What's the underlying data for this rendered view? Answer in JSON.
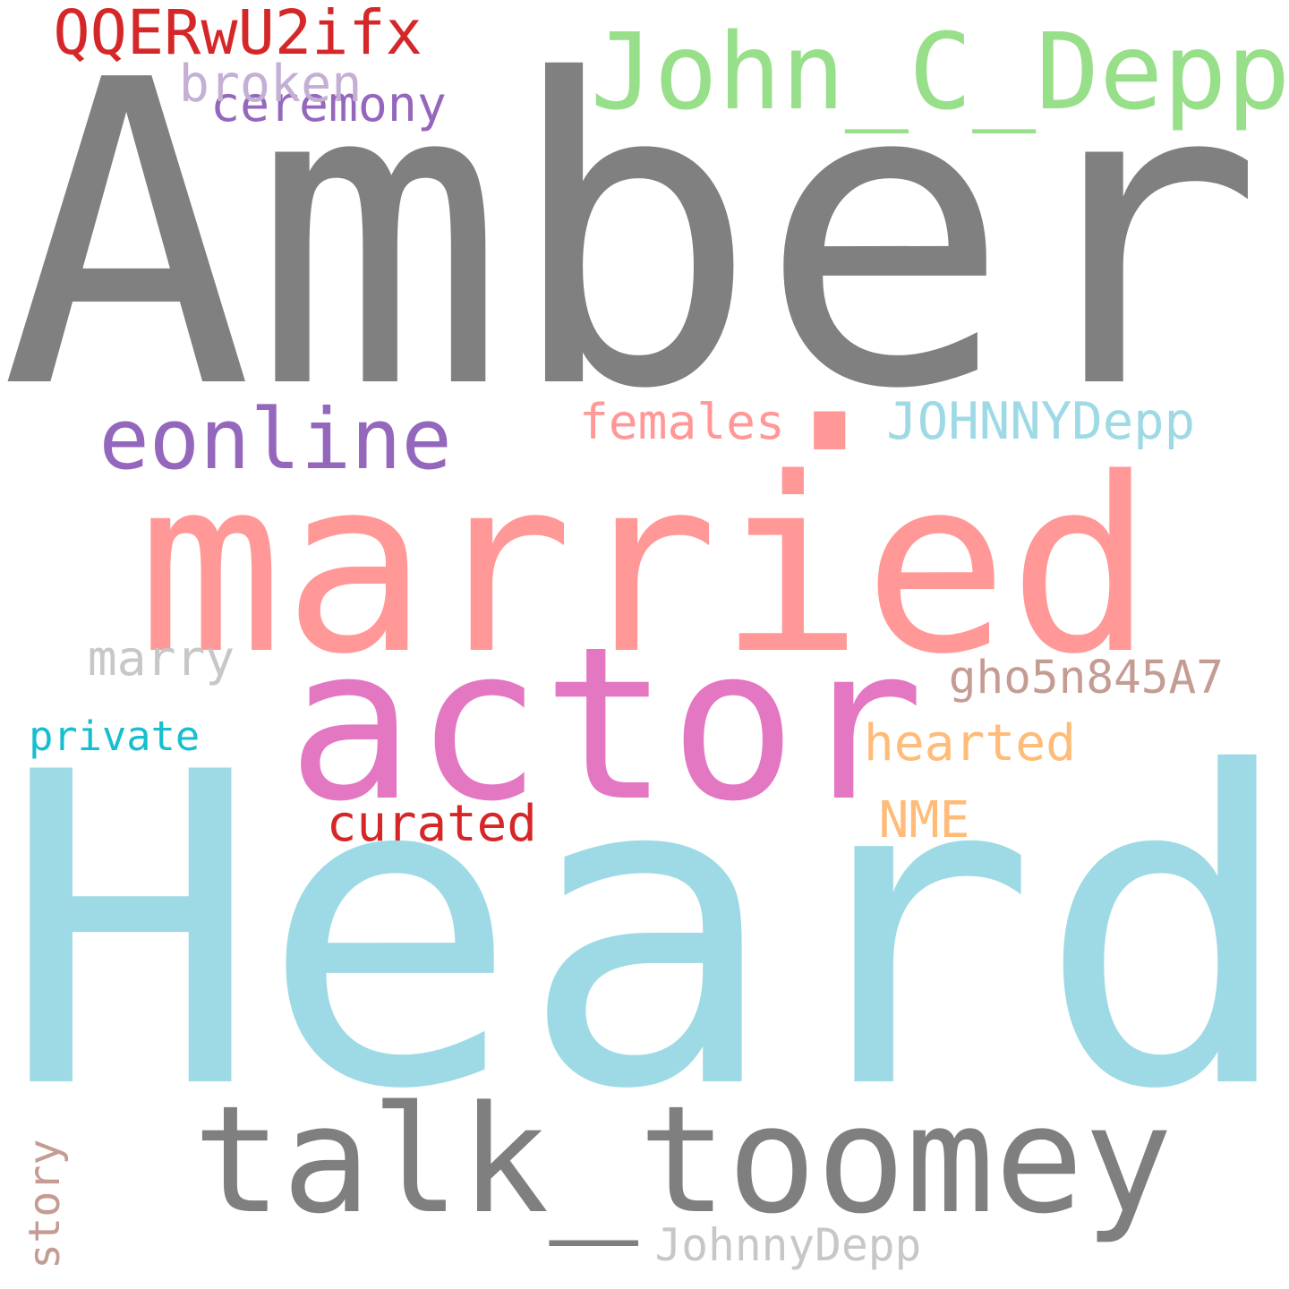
{
  "cloud": {
    "words": [
      {
        "key": "amber",
        "text": "Amber",
        "color": "#808080"
      },
      {
        "key": "married",
        "text": "married",
        "color": "#ff9896"
      },
      {
        "key": "heard",
        "text": "Heard",
        "color": "#9edae5"
      },
      {
        "key": "talk_toomey",
        "text": "talk_toomey",
        "color": "#7f7f7f"
      },
      {
        "key": "actor",
        "text": "actor",
        "color": "#e377c2"
      },
      {
        "key": "john_c_depp",
        "text": "John_C_Depp",
        "color": "#98df8a"
      },
      {
        "key": "eonline",
        "text": "eonline",
        "color": "#9467bd"
      },
      {
        "key": "qqerwu2ifx",
        "text": "QQERwU2ifx",
        "color": "#d62728"
      },
      {
        "key": "johnnydepp_upper",
        "text": "JOHNNYDepp",
        "color": "#9edae5"
      },
      {
        "key": "dot",
        "text": ".",
        "color": "#ff9896"
      },
      {
        "key": "ceremony",
        "text": "ceremony",
        "color": "#9467bd"
      },
      {
        "key": "broken",
        "text": "broken",
        "color": "#c5b0d5"
      },
      {
        "key": "females",
        "text": "females",
        "color": "#ff9896"
      },
      {
        "key": "gho5n845a7",
        "text": "gho5n845A7",
        "color": "#c49c94"
      },
      {
        "key": "hearted",
        "text": "hearted",
        "color": "#ffbb78"
      },
      {
        "key": "marry",
        "text": "marry",
        "color": "#c7c7c7"
      },
      {
        "key": "private",
        "text": "private",
        "color": "#17becf"
      },
      {
        "key": "curated",
        "text": "curated",
        "color": "#d62728"
      },
      {
        "key": "nme",
        "text": "NME",
        "color": "#ffbb78"
      },
      {
        "key": "story",
        "text": "story",
        "color": "#c49c94"
      },
      {
        "key": "johnnydepp",
        "text": "JohnnyDepp",
        "color": "#c7c7c7"
      }
    ]
  }
}
